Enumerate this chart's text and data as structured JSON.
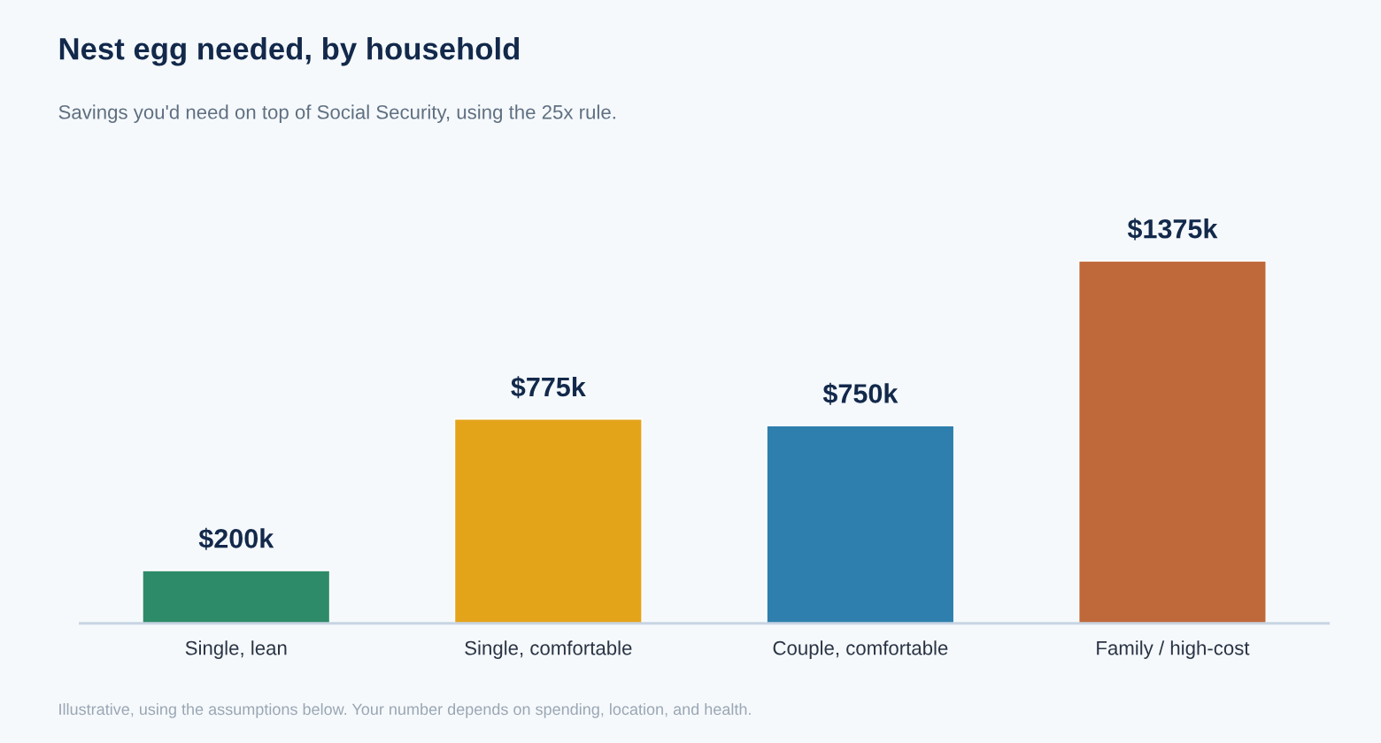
{
  "chart_data": {
    "type": "bar",
    "title": "Nest egg needed, by household",
    "subtitle": "Savings you'd need on top of Social Security, using the 25x rule.",
    "categories": [
      "Single, lean",
      "Single, comfortable",
      "Couple, comfortable",
      "Family / high-cost"
    ],
    "values": [
      200,
      775,
      750,
      1375
    ],
    "value_labels": [
      "$200k",
      "$775k",
      "$750k",
      "$1375k"
    ],
    "colors": [
      "#2e8b6a",
      "#e4a41a",
      "#2e7fae",
      "#bf693a"
    ],
    "annotations": [
      "Illustrative, using the assumptions below. Your number depends on spending, location, and health."
    ]
  }
}
